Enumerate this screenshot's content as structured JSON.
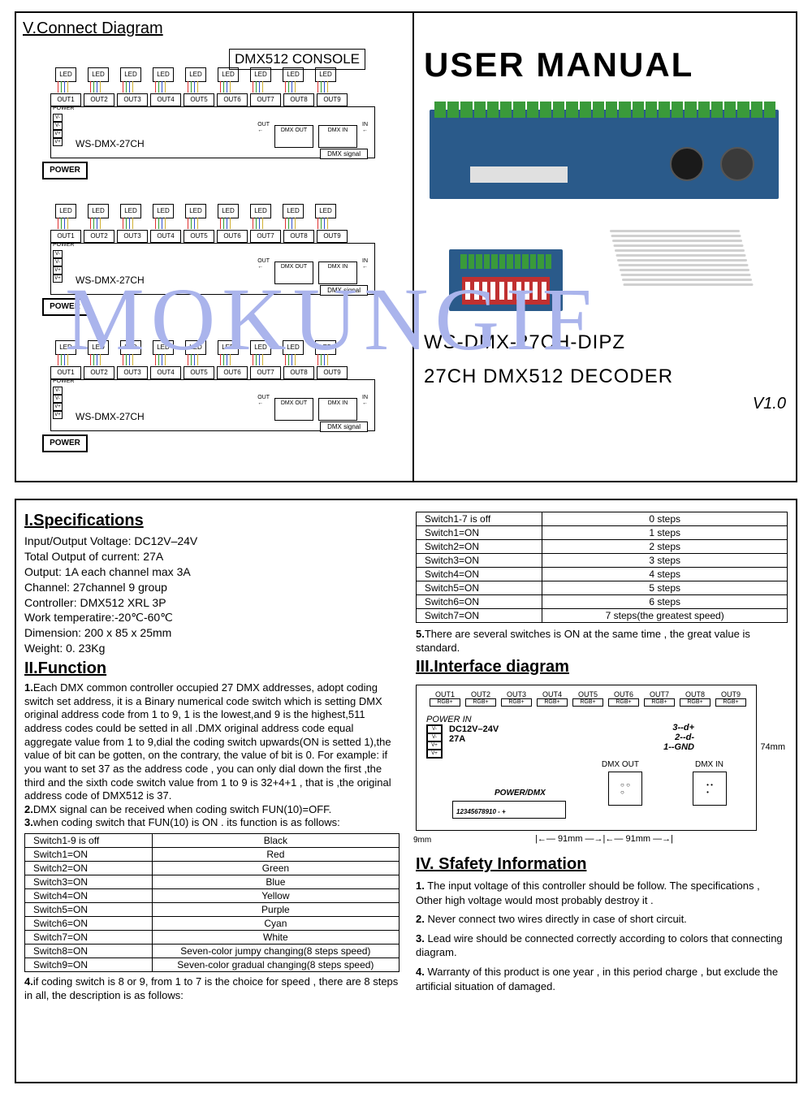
{
  "watermark": "MOKUNGIF",
  "top": {
    "section_v_title": "V.Connect Diagram",
    "console_label": "DMX512 CONSOLE",
    "led_label": "LED",
    "out_labels": [
      "OUT1",
      "OUT2",
      "OUT3",
      "OUT4",
      "OUT5",
      "OUT6",
      "OUT7",
      "OUT8",
      "OUT9"
    ],
    "power_header": "POWER",
    "power_pins": [
      "V-",
      "V-",
      "V+",
      "V+"
    ],
    "board_model": "WS-DMX-27CH",
    "dmx_out_label": "DMX OUT",
    "dmx_in_label": "DMX IN",
    "out_small": "OUT",
    "in_small": "IN",
    "dmx_signal": "DMX signal",
    "power_button": "POWER",
    "big_title": "USER MANUAL",
    "product_line1": "WS-DMX-27CH-DIPZ",
    "product_line2": "27CH DMX512 DECODER",
    "version": "V1.0",
    "wire_colors": [
      "#e03030",
      "#30a030",
      "#3050d0",
      "#d0b030"
    ],
    "pcb_color": "#2a5a8a",
    "connector_color": "#3a9a3a",
    "dip_red": "#c03030"
  },
  "specs": {
    "heading": "I.Specifications",
    "lines": [
      "Input/Output Voltage: DC12V–24V",
      "Total Output of current: 27A",
      "Output: 1A each channel max 3A",
      "Channel: 27channel 9 group",
      "Controller: DMX512 XRL 3P",
      "Work temperatire:-20℃-60℃",
      "Dimension: 200 x 85 x 25mm",
      "Weight: 0. 23Kg"
    ]
  },
  "func": {
    "heading": "II.Function",
    "p1": "Each DMX common controller occupied 27 DMX addresses, adopt coding switch set address, it is a Binary numerical code switch which is setting DMX original address code from 1 to 9, 1 is the lowest,and 9 is the highest,511 address codes could be setted in all .DMX original address code equal aggregate value from 1 to 9,dial the coding switch upwards(ON is setted 1),the value of bit can be gotten, on the contrary, the value of bit is 0. For example: if you want to set 37 as the address code , you can only dial down the first ,the third and the sixth code switch value from 1 to 9 is 32+4+1 , that is ,the original address code of DMX512 is 37.",
    "p2": "DMX signal can be received when coding switch FUN(10)=OFF.",
    "p3": "when coding switch that FUN(10) is ON . its function is as follows:",
    "table1": [
      [
        "Switch1-9 is off",
        "Black"
      ],
      [
        "Switch1=ON",
        "Red"
      ],
      [
        "Switch2=ON",
        "Green"
      ],
      [
        "Switch3=ON",
        "Blue"
      ],
      [
        "Switch4=ON",
        "Yellow"
      ],
      [
        "Switch5=ON",
        "Purple"
      ],
      [
        "Switch6=ON",
        "Cyan"
      ],
      [
        "Switch7=ON",
        "White"
      ],
      [
        "Switch8=ON",
        "Seven-color jumpy changing(8 steps speed)"
      ],
      [
        "Switch9=ON",
        "Seven-color gradual changing(8 steps speed)"
      ]
    ],
    "p4": "if coding switch is 8 or 9, from 1 to 7 is the choice for speed , there are 8 steps in all, the description is as follows:",
    "table2": [
      [
        "Switch1-7 is off",
        "0 steps"
      ],
      [
        "Switch1=ON",
        "1 steps"
      ],
      [
        "Switch2=ON",
        "2 steps"
      ],
      [
        "Switch3=ON",
        "3 steps"
      ],
      [
        "Switch4=ON",
        "4 steps"
      ],
      [
        "Switch5=ON",
        "5 steps"
      ],
      [
        "Switch6=ON",
        "6 steps"
      ],
      [
        "Switch7=ON",
        "7 steps(the greatest speed)"
      ]
    ],
    "p5": "There are several switches is ON at the same time , the great value is standard."
  },
  "interface": {
    "heading": "III.Interface diagram",
    "out_labels": [
      "OUT1",
      "OUT2",
      "OUT3",
      "OUT4",
      "OUT5",
      "OUT6",
      "OUT7",
      "OUT8",
      "OUT9"
    ],
    "rgb_label": "RGB+",
    "power_in": "POWER IN",
    "voltage": "DC12V–24V",
    "current": "27A",
    "pins3": "3--d+",
    "pins2": "2--d-",
    "pins1": "1--GND",
    "dmx_out": "DMX OUT",
    "dmx_in": "DMX IN",
    "power_dmx": "POWER/DMX",
    "dip_nums": "12345678910 - +",
    "height": "74mm",
    "width_seg": "91mm",
    "left_margin": "9mm",
    "power_pins": [
      "V-",
      "V-",
      "V+",
      "V+"
    ]
  },
  "safety": {
    "heading": "IV. Sfafety Information",
    "items": [
      "The input voltage of this controller should be follow. The specifications , Other high voltage would most probably destroy it .",
      "Never connect two wires directly in case of short circuit.",
      "Lead wire should be connected correctly according to colors that connecting diagram.",
      "Warranty of this product is one year , in this period charge , but exclude the artificial situation of damaged."
    ]
  }
}
